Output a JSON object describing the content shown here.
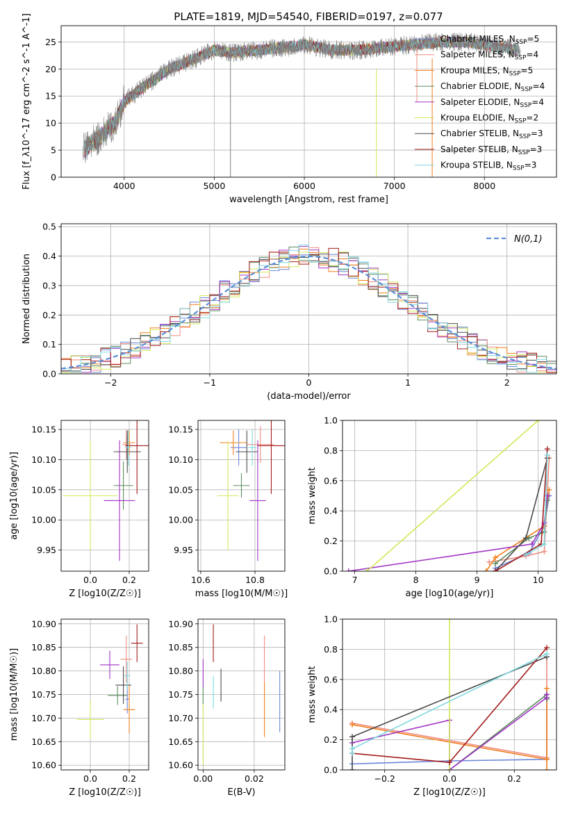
{
  "figure": {
    "title": "PLATE=1819, MJD=54540, FIBERID=0197, z=0.077"
  },
  "colors": {
    "chabrier_miles": "#6b86d9",
    "salpeter_miles": "#ef8b80",
    "kroupa_miles": "#f07f1b",
    "chabrier_elodie": "#5b8a5b",
    "salpeter_elodie": "#a033c4",
    "kroupa_elodie": "#d2e85a",
    "chabrier_stelib": "#4a4a4a",
    "salpeter_stelib": "#a31a1a",
    "kroupa_stelib": "#7ed8e0",
    "normal": "#5b8ed6",
    "data": "#808080"
  },
  "chart_data": [
    {
      "id": "spectrum",
      "type": "line",
      "xlabel": "wavelength [Angstrom, rest frame]",
      "ylabel": "Flux [f_λ10^-17 erg cm^-2 s^-1 A^-1]",
      "xlim": [
        3300,
        8800
      ],
      "ylim": [
        0,
        28
      ],
      "xticks": [
        4000,
        5000,
        6000,
        7000,
        8000
      ],
      "yticks": [
        0,
        5,
        10,
        15,
        20,
        25
      ],
      "legend_position": "top-right",
      "continuum": {
        "x": [
          3540,
          3700,
          3900,
          4000,
          4200,
          4500,
          4800,
          5000,
          5200,
          5500,
          5800,
          6000,
          6300,
          6600,
          6900,
          7200,
          7500,
          7800,
          8000,
          8200,
          8400
        ],
        "y": [
          5,
          7,
          10,
          14,
          16.5,
          20,
          22,
          23.5,
          23,
          23.5,
          24,
          24.5,
          23.5,
          23.5,
          24,
          24.5,
          25,
          25,
          24.5,
          24,
          23.5
        ]
      },
      "series": [
        {
          "name": "Chabrier MILES, N_SSP=5",
          "color_key": "chabrier_miles"
        },
        {
          "name": "Salpeter MILES, N_SSP=4",
          "color_key": "salpeter_miles"
        },
        {
          "name": "Kroupa MILES, N_SSP=5",
          "color_key": "kroupa_miles"
        },
        {
          "name": "Chabrier ELODIE, N_SSP=4",
          "color_key": "chabrier_elodie"
        },
        {
          "name": "Salpeter ELODIE, N_SSP=4",
          "color_key": "salpeter_elodie"
        },
        {
          "name": "Kroupa ELODIE, N_SSP=2",
          "color_key": "kroupa_elodie"
        },
        {
          "name": "Chabrier STELIB, N_SSP=3",
          "color_key": "chabrier_stelib"
        },
        {
          "name": "Salpeter STELIB, N_SSP=3",
          "color_key": "salpeter_stelib"
        },
        {
          "name": "Kroupa STELIB, N_SSP=3",
          "color_key": "kroupa_stelib"
        }
      ]
    },
    {
      "id": "residuals",
      "type": "line",
      "xlabel": "(data-model)/error",
      "ylabel": "Normed distribution",
      "xlim": [
        -2.5,
        2.5
      ],
      "ylim": [
        0,
        0.51
      ],
      "xticks": [
        -2,
        -1,
        0,
        1,
        2
      ],
      "yticks": [
        0.0,
        0.1,
        0.2,
        0.3,
        0.4,
        0.5
      ],
      "legend": "N(0,1)",
      "legend_position": "top-right",
      "bin_width": 0.1
    },
    {
      "id": "age_vs_Z",
      "type": "scatter",
      "xlabel": "Z [log10(Z/Z☉)]",
      "ylabel": "age  [log10(age/yr)]",
      "xlim": [
        -0.15,
        0.3
      ],
      "ylim": [
        9.915,
        10.165
      ],
      "xticks": [
        0.0,
        0.2
      ],
      "yticks": [
        9.95,
        10.0,
        10.05,
        10.1,
        10.15
      ],
      "points": [
        {
          "c": "chabrier_miles",
          "x": 0.19,
          "y": 10.12,
          "xerr": 0.01,
          "yerr": 0.02
        },
        {
          "c": "salpeter_miles",
          "x": 0.185,
          "y": 10.125,
          "xerr": 0.02,
          "yerr": 0.025
        },
        {
          "c": "kroupa_miles",
          "x": 0.2,
          "y": 10.128,
          "xerr": 0.03,
          "yerr": 0.02
        },
        {
          "c": "chabrier_elodie",
          "x": 0.17,
          "y": 10.057,
          "xerr": 0.05,
          "yerr": 0.04
        },
        {
          "c": "salpeter_elodie",
          "x": 0.15,
          "y": 10.032,
          "xerr": 0.08,
          "yerr": 0.1
        },
        {
          "c": "kroupa_elodie",
          "x": 0.0,
          "y": 10.04,
          "xerr": 0.14,
          "yerr": 0.09
        },
        {
          "c": "chabrier_stelib",
          "x": 0.19,
          "y": 10.113,
          "xerr": 0.07,
          "yerr": 0.035
        },
        {
          "c": "salpeter_stelib",
          "x": 0.24,
          "y": 10.123,
          "xerr": 0.06,
          "yerr": 0.08
        },
        {
          "c": "kroupa_stelib",
          "x": 0.195,
          "y": 10.12,
          "xerr": 0.015,
          "yerr": 0.03
        }
      ]
    },
    {
      "id": "age_vs_mass",
      "type": "scatter",
      "xlabel": "mass [log10(M/M☉)]",
      "xlim": [
        10.59,
        10.91
      ],
      "ylim": [
        9.915,
        10.165
      ],
      "xticks": [
        10.6,
        10.8
      ],
      "yticks": [
        9.95,
        10.0,
        10.05,
        10.1,
        10.15
      ],
      "points": [
        {
          "c": "chabrier_miles",
          "x": 10.74,
          "y": 10.12,
          "xerr": 0.03,
          "yerr": 0.03
        },
        {
          "c": "salpeter_miles",
          "x": 10.82,
          "y": 10.125,
          "xerr": 0.05,
          "yerr": 0.03
        },
        {
          "c": "kroupa_miles",
          "x": 10.72,
          "y": 10.128,
          "xerr": 0.05,
          "yerr": 0.02
        },
        {
          "c": "chabrier_elodie",
          "x": 10.75,
          "y": 10.057,
          "xerr": 0.03,
          "yerr": 0.02
        },
        {
          "c": "salpeter_elodie",
          "x": 10.81,
          "y": 10.032,
          "xerr": 0.03,
          "yerr": 0.1
        },
        {
          "c": "kroupa_elodie",
          "x": 10.7,
          "y": 10.04,
          "xerr": 0.04,
          "yerr": 0.09
        },
        {
          "c": "chabrier_stelib",
          "x": 10.77,
          "y": 10.113,
          "xerr": 0.04,
          "yerr": 0.035
        },
        {
          "c": "salpeter_stelib",
          "x": 10.86,
          "y": 10.123,
          "xerr": 0.05,
          "yerr": 0.08
        },
        {
          "c": "kroupa_stelib",
          "x": 10.79,
          "y": 10.12,
          "xerr": 0.015,
          "yerr": 0.03
        }
      ]
    },
    {
      "id": "massweight_vs_age",
      "type": "line",
      "xlabel": "age  [log10(age/yr)]",
      "ylabel": "mass weight",
      "xlim": [
        6.8,
        10.3
      ],
      "ylim": [
        0.0,
        1.0
      ],
      "xticks": [
        7,
        8,
        9,
        10
      ],
      "yticks": [
        0.0,
        0.2,
        0.4,
        0.6,
        0.8,
        1.0
      ],
      "series": [
        {
          "c": "chabrier_miles",
          "x": [
            9.3,
            9.85,
            10.1,
            10.18
          ],
          "y": [
            0.02,
            0.12,
            0.3,
            0.5
          ]
        },
        {
          "c": "salpeter_miles",
          "x": [
            9.2,
            9.8,
            10.1,
            10.18
          ],
          "y": [
            0.06,
            0.1,
            0.13,
            0.75
          ]
        },
        {
          "c": "kroupa_miles",
          "x": [
            9.15,
            9.3,
            10.1,
            10.18
          ],
          "y": [
            0.0,
            0.09,
            0.3,
            0.54
          ]
        },
        {
          "c": "chabrier_elodie",
          "x": [
            9.3,
            9.85,
            10.1,
            10.15
          ],
          "y": [
            0.05,
            0.22,
            0.26,
            0.47
          ]
        },
        {
          "c": "salpeter_elodie",
          "x": [
            6.9,
            9.9,
            10.1,
            10.15
          ],
          "y": [
            0.0,
            0.18,
            0.32,
            0.5
          ]
        },
        {
          "c": "kroupa_elodie",
          "x": [
            7.2,
            10.0
          ],
          "y": [
            0.0,
            1.0
          ]
        },
        {
          "c": "chabrier_stelib",
          "x": [
            9.3,
            9.8,
            10.15
          ],
          "y": [
            0.0,
            0.22,
            0.75
          ]
        },
        {
          "c": "salpeter_stelib",
          "x": [
            9.3,
            10.05,
            10.15
          ],
          "y": [
            0.0,
            0.18,
            0.81
          ]
        },
        {
          "c": "kroupa_stelib",
          "x": [
            9.8,
            10.1,
            10.15
          ],
          "y": [
            0.11,
            0.18,
            0.77
          ]
        }
      ]
    },
    {
      "id": "mass_vs_Z",
      "type": "scatter",
      "xlabel": "Z [log10(Z/Z☉)]",
      "ylabel": "mass [log10(M/M☉)]",
      "xlim": [
        -0.15,
        0.3
      ],
      "ylim": [
        10.59,
        10.91
      ],
      "xticks": [
        0.0,
        0.2
      ],
      "yticks": [
        10.6,
        10.65,
        10.7,
        10.75,
        10.8,
        10.85,
        10.9
      ],
      "points": [
        {
          "c": "chabrier_miles",
          "x": 0.19,
          "y": 10.74,
          "xerr": 0.01,
          "yerr": 0.03
        },
        {
          "c": "salpeter_miles",
          "x": 0.185,
          "y": 10.825,
          "xerr": 0.03,
          "yerr": 0.05
        },
        {
          "c": "kroupa_miles",
          "x": 0.2,
          "y": 10.718,
          "xerr": 0.03,
          "yerr": 0.05
        },
        {
          "c": "chabrier_elodie",
          "x": 0.14,
          "y": 10.748,
          "xerr": 0.05,
          "yerr": 0.02
        },
        {
          "c": "salpeter_elodie",
          "x": 0.1,
          "y": 10.813,
          "xerr": 0.05,
          "yerr": 0.03
        },
        {
          "c": "kroupa_elodie",
          "x": 0.0,
          "y": 10.697,
          "xerr": 0.07,
          "yerr": 0.04
        },
        {
          "c": "chabrier_stelib",
          "x": 0.17,
          "y": 10.77,
          "xerr": 0.04,
          "yerr": 0.04
        },
        {
          "c": "salpeter_stelib",
          "x": 0.24,
          "y": 10.859,
          "xerr": 0.03,
          "yerr": 0.04
        },
        {
          "c": "kroupa_stelib",
          "x": 0.19,
          "y": 10.79,
          "xerr": 0.015,
          "yerr": 0.03
        }
      ]
    },
    {
      "id": "mass_vs_ebv",
      "type": "scatter",
      "xlabel": "E(B-V)",
      "xlim": [
        -0.002,
        0.032
      ],
      "ylim": [
        10.59,
        10.91
      ],
      "xticks": [
        0.0,
        0.02
      ],
      "yticks": [
        10.6,
        10.65,
        10.7,
        10.75,
        10.8,
        10.85,
        10.9
      ],
      "points": [
        {
          "c": "chabrier_miles",
          "x": 0.03,
          "y": 10.735,
          "yerr": 0.065
        },
        {
          "c": "salpeter_miles",
          "x": 0.024,
          "y": 10.825,
          "yerr": 0.05
        },
        {
          "c": "kroupa_miles",
          "x": 0.024,
          "y": 10.718,
          "yerr": 0.058
        },
        {
          "c": "chabrier_elodie",
          "x": 0.0,
          "y": 10.748,
          "yerr": 0.02
        },
        {
          "c": "salpeter_elodie",
          "x": 0.0,
          "y": 10.795,
          "yerr": 0.03
        },
        {
          "c": "kroupa_elodie",
          "x": 0.0,
          "y": 10.665,
          "yerr": 0.065
        },
        {
          "c": "chabrier_stelib",
          "x": 0.007,
          "y": 10.77,
          "yerr": 0.035
        },
        {
          "c": "salpeter_stelib",
          "x": 0.004,
          "y": 10.859,
          "yerr": 0.04
        },
        {
          "c": "kroupa_stelib",
          "x": 0.004,
          "y": 10.755,
          "yerr": 0.035
        }
      ]
    },
    {
      "id": "massweight_vs_Z",
      "type": "line",
      "xlabel": "Z [log10(Z/Z☉)]",
      "ylabel": "mass weight",
      "xlim": [
        -0.33,
        0.33
      ],
      "ylim": [
        0.0,
        1.0
      ],
      "xticks": [
        -0.2,
        0.0,
        0.2
      ],
      "yticks": [
        0.0,
        0.2,
        0.4,
        0.6,
        0.8,
        1.0
      ],
      "series": [
        {
          "c": "chabrier_miles",
          "x": [
            -0.3,
            0.0,
            0.3,
            0.3
          ],
          "y": [
            0.04,
            0.06,
            0.07,
            0.5
          ]
        },
        {
          "c": "salpeter_miles",
          "x": [
            -0.3,
            0.3,
            0.3
          ],
          "y": [
            0.31,
            0.08,
            0.75
          ]
        },
        {
          "c": "kroupa_miles",
          "x": [
            -0.3,
            0.3,
            0.3,
            0.3
          ],
          "y": [
            0.3,
            0.07,
            0.0,
            0.54
          ]
        },
        {
          "c": "chabrier_elodie",
          "x": [
            0.0,
            0.3,
            0.3
          ],
          "y": [
            0.0,
            0.5,
            0.47
          ]
        },
        {
          "c": "salpeter_elodie",
          "x": [
            -0.3,
            0.0,
            0.0,
            0.3,
            0.3
          ],
          "y": [
            0.18,
            0.33,
            0.0,
            0.48,
            0.5
          ]
        },
        {
          "c": "kroupa_elodie",
          "x": [
            0.0,
            0.0
          ],
          "y": [
            0.0,
            1.0
          ]
        },
        {
          "c": "chabrier_stelib",
          "x": [
            -0.3,
            -0.3,
            0.3
          ],
          "y": [
            0.0,
            0.22,
            0.75
          ]
        },
        {
          "c": "salpeter_stelib",
          "x": [
            -0.3,
            0.0,
            0.3
          ],
          "y": [
            0.11,
            0.05,
            0.81
          ]
        },
        {
          "c": "kroupa_stelib",
          "x": [
            -0.3,
            -0.3,
            0.3
          ],
          "y": [
            0.11,
            0.14,
            0.77
          ]
        }
      ]
    }
  ]
}
